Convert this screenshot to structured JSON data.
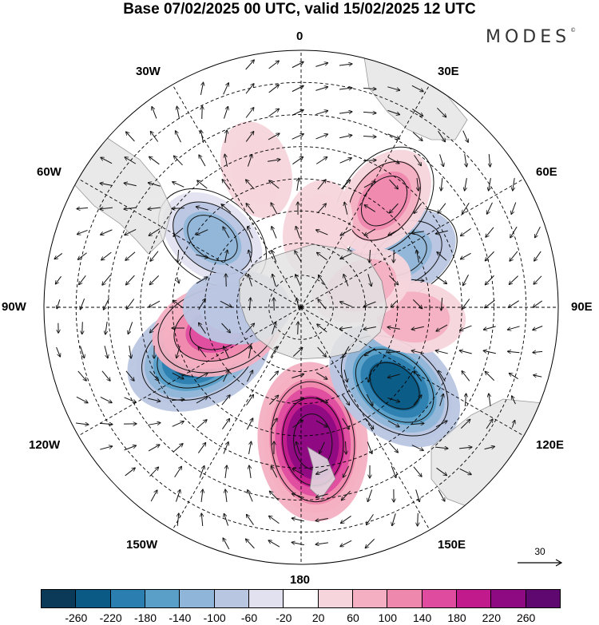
{
  "title": "Base 07/02/2025 00 UTC, valid 15/02/2025 12 UTC",
  "brand": "MODES",
  "brand_mark": "©",
  "meridian_labels": {
    "n0": "0",
    "n30e": "30E",
    "n60e": "60E",
    "e90": "90E",
    "n120e": "120E",
    "n150e": "150E",
    "s180": "180",
    "n150w": "150W",
    "n120w": "120W",
    "w90": "90W",
    "n60w": "60W",
    "n30w": "30W"
  },
  "reference_vector": {
    "value": "30",
    "icon": "arrow-right-icon"
  },
  "colorbar": {
    "tick_labels": [
      "-260",
      "-220",
      "-180",
      "-140",
      "-100",
      "-60",
      "-20",
      "20",
      "60",
      "100",
      "140",
      "180",
      "220",
      "260"
    ],
    "colors": [
      "#0b3a58",
      "#0b5a86",
      "#2b7fb0",
      "#5a9fc8",
      "#8fb6d8",
      "#b9c6e2",
      "#e2e1f0",
      "#ffffff",
      "#f7d5dc",
      "#f4b0c2",
      "#ef88ad",
      "#df4c9f",
      "#c01a8c",
      "#8e0a82",
      "#5e0870"
    ]
  },
  "anomaly_centers": [
    {
      "lon": -115,
      "lat": -55,
      "value": -230
    },
    {
      "lon": 175,
      "lat": -48,
      "value": 260
    },
    {
      "lon": 130,
      "lat": -52,
      "value": -220
    },
    {
      "lon": -105,
      "lat": -63,
      "value": 170
    },
    {
      "lon": 62,
      "lat": -55,
      "value": -120
    },
    {
      "lon": -52,
      "lat": -55,
      "value": -100
    },
    {
      "lon": 38,
      "lat": -48,
      "value": 110
    },
    {
      "lon": -90,
      "lat": -70,
      "value": -90
    },
    {
      "lon": 95,
      "lat": -55,
      "value": 80
    },
    {
      "lon": 12,
      "lat": -65,
      "value": 60
    },
    {
      "lon": -18,
      "lat": -45,
      "value": 60
    },
    {
      "lon": 70,
      "lat": -70,
      "value": 70
    }
  ]
}
